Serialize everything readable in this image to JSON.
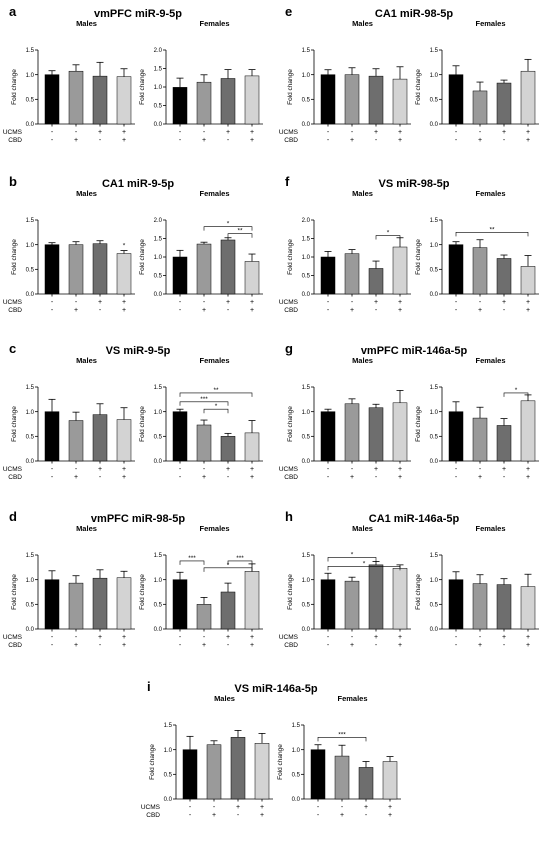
{
  "meta": {
    "ylabel": "Fold change",
    "row_labels": [
      "UCMS",
      "CBD"
    ],
    "row_values": [
      [
        "-",
        "-",
        "+",
        "+"
      ],
      [
        "-",
        "+",
        "-",
        "+"
      ]
    ],
    "bar_colors": [
      "#000000",
      "#9a9a9a",
      "#6e6e6e",
      "#d3d3d3"
    ]
  },
  "chart_data": [
    {
      "letter": "a",
      "title": "vmPFC miR-9-5p",
      "panels": [
        {
          "subtitle": "Males",
          "type": "bar",
          "ylim": [
            0,
            1.5
          ],
          "yticks": [
            "0.0",
            "0.5",
            "1.0",
            "1.5"
          ],
          "values": [
            1.0,
            1.07,
            0.97,
            0.96
          ],
          "errors": [
            0.08,
            0.13,
            0.28,
            0.16
          ],
          "sig": []
        },
        {
          "subtitle": "Females",
          "type": "bar",
          "ylim": [
            0,
            2.0
          ],
          "yticks": [
            "0.0",
            "0.5",
            "1.0",
            "1.5",
            "2.0"
          ],
          "values": [
            0.99,
            1.13,
            1.23,
            1.3
          ],
          "errors": [
            0.25,
            0.2,
            0.24,
            0.17
          ],
          "sig": []
        }
      ]
    },
    {
      "letter": "e",
      "title": "CA1 miR-98-5p",
      "panels": [
        {
          "subtitle": "Males",
          "type": "bar",
          "ylim": [
            0,
            1.5
          ],
          "yticks": [
            "0.0",
            "0.5",
            "1.0",
            "1.5"
          ],
          "values": [
            1.0,
            1.0,
            0.97,
            0.91
          ],
          "errors": [
            0.1,
            0.14,
            0.15,
            0.25
          ],
          "sig": []
        },
        {
          "subtitle": "Females",
          "type": "bar",
          "ylim": [
            0,
            1.5
          ],
          "yticks": [
            "0.0",
            "0.5",
            "1.0",
            "1.5"
          ],
          "values": [
            1.0,
            0.67,
            0.83,
            1.07
          ],
          "errors": [
            0.18,
            0.18,
            0.06,
            0.24
          ],
          "sig": []
        }
      ]
    },
    {
      "letter": "b",
      "title": "CA1 miR-9-5p",
      "panels": [
        {
          "subtitle": "Males",
          "type": "bar",
          "ylim": [
            0,
            1.5
          ],
          "yticks": [
            "0.0",
            "0.5",
            "1.0",
            "1.5"
          ],
          "values": [
            1.0,
            1.0,
            1.02,
            0.82
          ],
          "errors": [
            0.04,
            0.06,
            0.06,
            0.06
          ],
          "sig": [
            {
              "from": 3,
              "to": 3,
              "y": 0.92,
              "label": "*"
            }
          ]
        },
        {
          "subtitle": "Females",
          "type": "bar",
          "ylim": [
            0,
            2.0
          ],
          "yticks": [
            "0.0",
            "0.5",
            "1.0",
            "1.5",
            "2.0"
          ],
          "values": [
            1.0,
            1.35,
            1.46,
            0.88
          ],
          "errors": [
            0.18,
            0.05,
            0.06,
            0.2
          ],
          "sig": [
            {
              "from": 1,
              "to": 3,
              "y": 1.82,
              "label": "*"
            },
            {
              "from": 2,
              "to": 3,
              "y": 1.63,
              "label": "**"
            }
          ]
        }
      ]
    },
    {
      "letter": "f",
      "title": "VS miR-98-5p",
      "panels": [
        {
          "subtitle": "Males",
          "type": "bar",
          "ylim": [
            0,
            2.0
          ],
          "yticks": [
            "0.0",
            "0.5",
            "1.0",
            "1.5",
            "2.0"
          ],
          "values": [
            1.0,
            1.09,
            0.69,
            1.27
          ],
          "errors": [
            0.15,
            0.11,
            0.2,
            0.25
          ],
          "sig": [
            {
              "from": 2,
              "to": 3,
              "y": 1.58,
              "label": "*"
            }
          ]
        },
        {
          "subtitle": "Females",
          "type": "bar",
          "ylim": [
            0,
            1.5
          ],
          "yticks": [
            "0.0",
            "0.5",
            "1.0",
            "1.5"
          ],
          "values": [
            1.0,
            0.94,
            0.72,
            0.56
          ],
          "errors": [
            0.06,
            0.16,
            0.07,
            0.22
          ],
          "sig": [
            {
              "from": 0,
              "to": 3,
              "y": 1.25,
              "label": "**"
            }
          ]
        }
      ]
    },
    {
      "letter": "c",
      "title": "VS miR-9-5p",
      "panels": [
        {
          "subtitle": "Males",
          "type": "bar",
          "ylim": [
            0,
            1.5
          ],
          "yticks": [
            "0.0",
            "0.5",
            "1.0",
            "1.5"
          ],
          "values": [
            1.0,
            0.82,
            0.94,
            0.84
          ],
          "errors": [
            0.25,
            0.17,
            0.22,
            0.24
          ],
          "sig": []
        },
        {
          "subtitle": "Females",
          "type": "bar",
          "ylim": [
            0,
            1.5
          ],
          "yticks": [
            "0.0",
            "0.5",
            "1.0",
            "1.5"
          ],
          "values": [
            1.0,
            0.73,
            0.5,
            0.57
          ],
          "errors": [
            0.05,
            0.1,
            0.06,
            0.25
          ],
          "sig": [
            {
              "from": 0,
              "to": 3,
              "y": 1.38,
              "label": "**"
            },
            {
              "from": 0,
              "to": 2,
              "y": 1.2,
              "label": "***"
            },
            {
              "from": 1,
              "to": 2,
              "y": 1.05,
              "label": "*"
            }
          ]
        }
      ]
    },
    {
      "letter": "g",
      "title": "vmPFC miR-146a-5p",
      "panels": [
        {
          "subtitle": "Males",
          "type": "bar",
          "ylim": [
            0,
            1.5
          ],
          "yticks": [
            "0.0",
            "0.5",
            "1.0",
            "1.5"
          ],
          "values": [
            1.0,
            1.16,
            1.08,
            1.18
          ],
          "errors": [
            0.05,
            0.1,
            0.07,
            0.25
          ],
          "sig": []
        },
        {
          "subtitle": "Females",
          "type": "bar",
          "ylim": [
            0,
            1.5
          ],
          "yticks": [
            "0.0",
            "0.5",
            "1.0",
            "1.5"
          ],
          "values": [
            1.0,
            0.87,
            0.72,
            1.22
          ],
          "errors": [
            0.2,
            0.22,
            0.14,
            0.12
          ],
          "sig": [
            {
              "from": 2,
              "to": 3,
              "y": 1.38,
              "label": "*"
            }
          ]
        }
      ]
    },
    {
      "letter": "d",
      "title": "vmPFC miR-98-5p",
      "panels": [
        {
          "subtitle": "Males",
          "type": "bar",
          "ylim": [
            0,
            1.5
          ],
          "yticks": [
            "0.0",
            "0.5",
            "1.0",
            "1.5"
          ],
          "values": [
            1.0,
            0.93,
            1.03,
            1.04
          ],
          "errors": [
            0.18,
            0.15,
            0.17,
            0.13
          ],
          "sig": []
        },
        {
          "subtitle": "Females",
          "type": "bar",
          "ylim": [
            0,
            1.5
          ],
          "yticks": [
            "0.0",
            "0.5",
            "1.0",
            "1.5"
          ],
          "values": [
            1.0,
            0.5,
            0.75,
            1.17
          ],
          "errors": [
            0.15,
            0.14,
            0.18,
            0.15
          ],
          "sig": [
            {
              "from": 0,
              "to": 1,
              "y": 1.38,
              "label": "***"
            },
            {
              "from": 2,
              "to": 3,
              "y": 1.38,
              "label": "***"
            },
            {
              "from": 1,
              "to": 3,
              "y": 1.24,
              "label": "*"
            }
          ]
        }
      ]
    },
    {
      "letter": "h",
      "title": "CA1 miR-146a-5p",
      "panels": [
        {
          "subtitle": "Males",
          "type": "bar",
          "ylim": [
            0,
            1.5
          ],
          "yticks": [
            "0.0",
            "0.5",
            "1.0",
            "1.5"
          ],
          "values": [
            1.0,
            0.97,
            1.3,
            1.23
          ],
          "errors": [
            0.13,
            0.08,
            0.07,
            0.07
          ],
          "sig": [
            {
              "from": 0,
              "to": 2,
              "y": 1.45,
              "label": "*"
            },
            {
              "from": 0,
              "to": 3,
              "y": 1.27,
              "label": "*"
            }
          ]
        },
        {
          "subtitle": "Females",
          "type": "bar",
          "ylim": [
            0,
            1.5
          ],
          "yticks": [
            "0.0",
            "0.5",
            "1.0",
            "1.5"
          ],
          "values": [
            1.0,
            0.92,
            0.9,
            0.86
          ],
          "errors": [
            0.16,
            0.18,
            0.12,
            0.25
          ],
          "sig": []
        }
      ]
    },
    {
      "letter": "i",
      "title": "VS miR-146a-5p",
      "panels": [
        {
          "subtitle": "Males",
          "type": "bar",
          "ylim": [
            0,
            1.5
          ],
          "yticks": [
            "0.0",
            "0.5",
            "1.0",
            "1.5"
          ],
          "values": [
            1.0,
            1.1,
            1.25,
            1.13
          ],
          "errors": [
            0.27,
            0.08,
            0.14,
            0.2
          ],
          "sig": []
        },
        {
          "subtitle": "Females",
          "type": "bar",
          "ylim": [
            0,
            1.5
          ],
          "yticks": [
            "0.0",
            "0.5",
            "1.0",
            "1.5"
          ],
          "values": [
            1.0,
            0.87,
            0.64,
            0.76
          ],
          "errors": [
            0.1,
            0.22,
            0.12,
            0.1
          ],
          "sig": [
            {
              "from": 0,
              "to": 2,
              "y": 1.25,
              "label": "***"
            }
          ]
        }
      ]
    }
  ]
}
